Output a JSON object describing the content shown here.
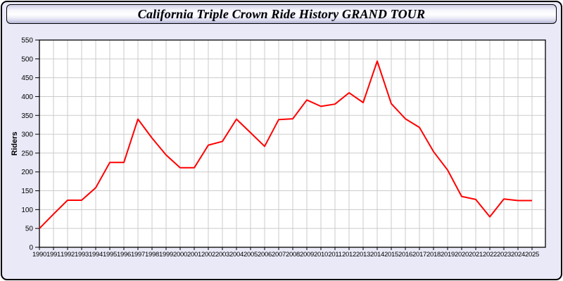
{
  "window": {
    "title": "California Triple Crown Ride History GRAND TOUR"
  },
  "colors": {
    "panel_bg": "#e9e9f7",
    "plot_bg": "#ffffff",
    "grid": "#cbcbcb",
    "axis": "#000000",
    "line": "#ff0000",
    "text": "#000000"
  },
  "chart_data": {
    "type": "line",
    "title": "California Triple Crown Ride History GRAND TOUR",
    "xlabel": "",
    "ylabel": "Riders",
    "ylim": [
      0,
      550
    ],
    "ytick_step": 50,
    "grid": true,
    "legend": "none",
    "x": [
      1990,
      1991,
      1992,
      1993,
      1994,
      1995,
      1996,
      1997,
      1998,
      1999,
      2000,
      2001,
      2002,
      2003,
      2004,
      2005,
      2006,
      2007,
      2008,
      2009,
      2010,
      2011,
      2012,
      2013,
      2014,
      2015,
      2016,
      2017,
      2018,
      2019,
      2020,
      2021,
      2022,
      2023,
      2024,
      2025
    ],
    "series": [
      {
        "name": "Riders",
        "color": "#ff0000",
        "values": [
          50,
          88,
          125,
          125,
          158,
          225,
          225,
          340,
          290,
          245,
          211,
          211,
          271,
          281,
          340,
          304,
          268,
          339,
          341,
          391,
          374,
          380,
          410,
          384,
          494,
          381,
          341,
          318,
          254,
          205,
          135,
          127,
          81,
          128,
          124,
          124
        ]
      }
    ]
  }
}
